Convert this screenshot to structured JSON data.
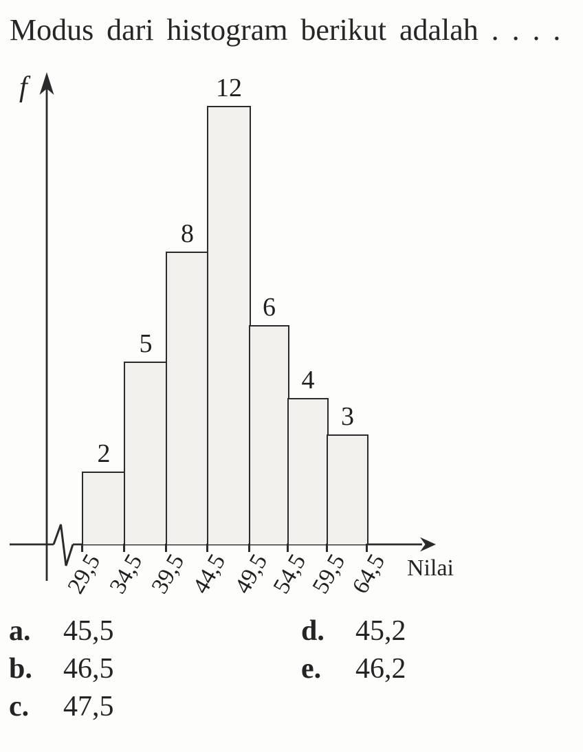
{
  "question": "Modus dari histogram berikut adalah . . . .",
  "chart_data": {
    "type": "bar",
    "variant": "histogram",
    "title": "",
    "ylabel": "f",
    "xlabel": "Nilai",
    "boundaries": [
      "29,5",
      "34,5",
      "39,5",
      "44,5",
      "49,5",
      "54,5",
      "59,5",
      "64,5"
    ],
    "boundaries_numeric": [
      29.5,
      34.5,
      39.5,
      44.5,
      49.5,
      54.5,
      59.5,
      64.5
    ],
    "class_width": 5,
    "values": [
      2,
      5,
      8,
      12,
      6,
      4,
      3
    ],
    "ylim": [
      0,
      12
    ],
    "grid": false,
    "legend": false,
    "axis_break_on_x": true,
    "bar_fill_color": "#f1f0ed",
    "ink_color": "#2b2b2b"
  },
  "options": [
    {
      "letter": "a.",
      "value": "45,5"
    },
    {
      "letter": "b.",
      "value": "46,5"
    },
    {
      "letter": "c.",
      "value": "47,5"
    },
    {
      "letter": "d.",
      "value": "45,2"
    },
    {
      "letter": "e.",
      "value": "46,2"
    }
  ]
}
